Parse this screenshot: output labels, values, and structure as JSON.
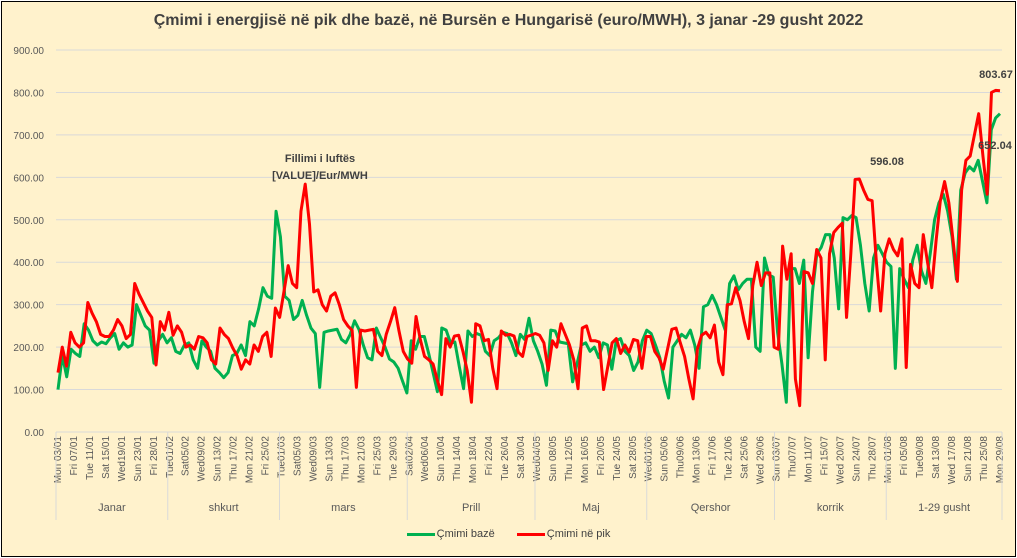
{
  "chart_data": {
    "type": "line",
    "title": "Çmimi i energjisë në pik dhe bazë, në Bursën e Hungarisë (euro/MWH), 3 janar -29 gusht 2022",
    "xlabel": "",
    "ylabel": "",
    "ylim": [
      0,
      900
    ],
    "yticks": [
      "0.00",
      "100.00",
      "200.00",
      "300.00",
      "400.00",
      "500.00",
      "600.00",
      "700.00",
      "800.00",
      "900.00"
    ],
    "grid": true,
    "legend_position": "bottom",
    "x_tick_labels": [
      "Mon 03/01",
      "Fri 07/01",
      "Tue 11/01",
      "Sat 15/01",
      "Wed19/01",
      "Sun 23/01",
      "Fri 28/01",
      "Tue01/02",
      "Sat05/02",
      "Wed09/02",
      "Sun 13/02",
      "Thu 17/02",
      "Mon 21/02",
      "Fri 25/02",
      "Tue01/03",
      "Sat05/03",
      "Wed09/03",
      "Sun 13/03",
      "Thu 17/03",
      "Mon 21/03",
      "Fri 25/03",
      "Tue 29/03",
      "Sat02/04",
      "Wed06/04",
      "Sun 10/04",
      "Thu 14/04",
      "Mon 18/04",
      "Fri 22/04",
      "Tue 26/04",
      "Sat 30/04",
      "Wed04/05",
      "Sun 08/05",
      "Thu 12/05",
      "Mon 16/05",
      "Fri 20/05",
      "Tue 24/05",
      "Sat 28/05",
      "Wed01/06",
      "Sun 05/06",
      "Thu09/06",
      "Mon 13/06",
      "Fri 17/06",
      "Tue 21/06",
      "Sat 25/06",
      "Wed 29/06",
      "Sun 03/07",
      "Thu07/07",
      "Mon 11/07",
      "Fri 15/07",
      "Wed 20/07",
      "Sun 24/07",
      "Thu 28/07",
      "Mon 01/08",
      "Fri 05/08",
      "Tue09/08",
      "Sat 13/08",
      "Wed 17/08",
      "Sun 21/08",
      "Thu 25/08",
      "Mon 29/08"
    ],
    "months": [
      "Janar",
      "shkurt",
      "mars",
      "Prill",
      "Maj",
      "Qershor",
      "korrik",
      "1-29 gusht"
    ],
    "annotations": [
      {
        "text_line1": "Fillimi i luftës",
        "text_line2": "[VALUE]/Eur/MWH",
        "series": "Çmimi në pik"
      },
      {
        "text": "596.08",
        "series": "Çmimi në pik"
      },
      {
        "text": "803.67",
        "series": "Çmimi në pik"
      },
      {
        "text": "652.04",
        "series": "Çmimi bazë"
      }
    ],
    "series": [
      {
        "name": "Çmimi bazë",
        "color": "#00b050",
        "values": [
          100,
          180,
          130,
          195,
          185,
          178,
          255,
          240,
          215,
          205,
          212,
          208,
          222,
          232,
          195,
          210,
          200,
          205,
          300,
          275,
          250,
          240,
          162,
          215,
          230,
          210,
          222,
          190,
          185,
          205,
          210,
          170,
          150,
          215,
          200,
          190,
          150,
          140,
          128,
          140,
          180,
          185,
          205,
          180,
          260,
          250,
          290,
          340,
          320,
          315,
          520,
          460,
          320,
          310,
          265,
          275,
          310,
          275,
          245,
          232,
          105,
          235,
          238,
          240,
          242,
          218,
          210,
          230,
          262,
          242,
          205,
          175,
          170,
          245,
          222,
          200,
          172,
          165,
          150,
          120,
          92,
          215,
          195,
          225,
          225,
          185,
          140,
          95,
          245,
          240,
          210,
          212,
          155,
          102,
          238,
          225,
          232,
          228,
          190,
          180,
          215,
          222,
          235,
          232,
          210,
          180,
          230,
          218,
          268,
          215,
          190,
          160,
          110,
          240,
          238,
          212,
          210,
          208,
          118,
          160,
          205,
          210,
          190,
          200,
          175,
          210,
          205,
          148,
          215,
          220,
          190,
          180,
          145,
          165,
          215,
          240,
          232,
          205,
          175,
          120,
          80,
          200,
          215,
          230,
          222,
          240,
          205,
          150,
          295,
          300,
          322,
          300,
          270,
          240,
          350,
          368,
          335,
          350,
          360,
          360,
          200,
          190,
          410,
          370,
          365,
          235,
          160,
          70,
          385,
          385,
          350,
          405,
          175,
          330,
          420,
          435,
          465,
          465,
          410,
          290,
          505,
          500,
          510,
          505,
          440,
          350,
          285,
          410,
          440,
          420,
          400,
          390,
          150,
          385,
          360,
          340,
          405,
          440,
          380,
          350,
          420,
          500,
          540,
          560,
          520,
          460,
          360,
          570,
          610,
          625,
          615,
          640,
          590,
          540,
          712,
          740,
          750
        ]
      },
      {
        "name": "Çmimi në pik",
        "color": "#ff0000",
        "values": [
          140,
          200,
          155,
          235,
          210,
          200,
          210,
          305,
          280,
          260,
          230,
          225,
          225,
          240,
          265,
          250,
          220,
          230,
          350,
          325,
          305,
          285,
          270,
          158,
          260,
          240,
          282,
          228,
          250,
          235,
          200,
          205,
          195,
          225,
          222,
          210,
          170,
          160,
          245,
          230,
          220,
          198,
          180,
          148,
          170,
          160,
          205,
          190,
          225,
          235,
          178,
          292,
          270,
          330,
          392,
          350,
          340,
          520,
          584,
          490,
          330,
          335,
          300,
          285,
          320,
          328,
          300,
          265,
          250,
          240,
          105,
          240,
          238,
          240,
          242,
          190,
          180,
          230,
          260,
          293,
          238,
          190,
          172,
          162,
          272,
          218,
          178,
          170,
          160,
          122,
          88,
          220,
          200,
          226,
          228,
          190,
          145,
          70,
          255,
          250,
          215,
          218,
          150,
          102,
          238,
          228,
          230,
          226,
          188,
          178,
          225,
          228,
          232,
          228,
          210,
          145,
          215,
          200,
          255,
          230,
          205,
          170,
          102,
          245,
          250,
          215,
          215,
          212,
          100,
          155,
          210,
          220,
          185,
          205,
          188,
          218,
          215,
          150,
          225,
          225,
          190,
          175,
          148,
          195,
          242,
          245,
          210,
          178,
          125,
          78,
          195,
          228,
          235,
          222,
          252,
          165,
          135,
          300,
          302,
          340,
          310,
          260,
          220,
          345,
          400,
          345,
          375,
          375,
          200,
          195,
          438,
          360,
          420,
          125,
          62,
          378,
          375,
          350,
          430,
          410,
          170,
          420,
          470,
          482,
          492,
          270,
          420,
          595,
          596,
          570,
          548,
          545,
          400,
          285,
          420,
          455,
          430,
          415,
          455,
          152,
          395,
          350,
          340,
          465,
          400,
          340,
          450,
          545,
          590,
          540,
          450,
          355,
          570,
          640,
          650,
          700,
          750,
          650,
          560,
          800,
          805,
          804
        ]
      }
    ]
  }
}
